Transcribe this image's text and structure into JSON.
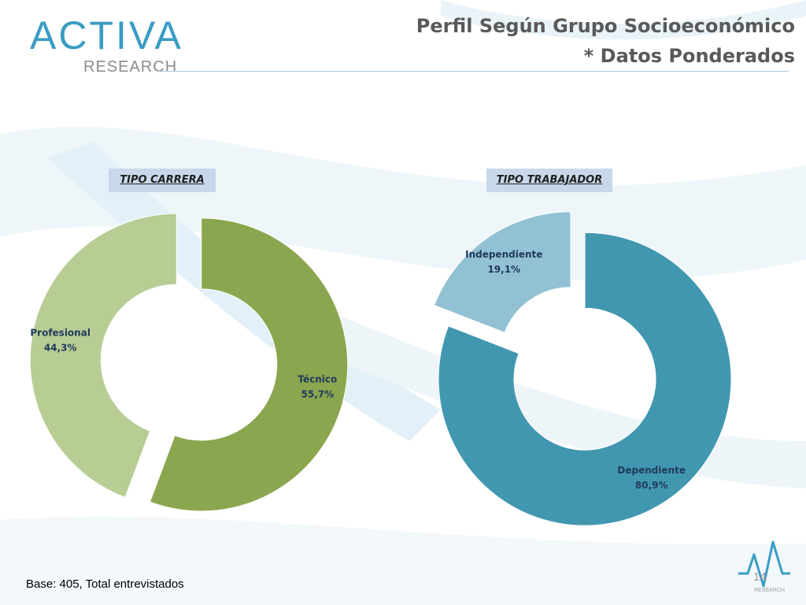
{
  "header": {
    "logo_text": "ACTIVA",
    "logo_subtext": "RESEARCH",
    "title_line1": "Perfil Según Grupo Socioeconómico",
    "title_line2": "* Datos Ponderados"
  },
  "colors": {
    "title": "#595959",
    "brand": "#3a9cc4",
    "label_box": "#c8d8ea"
  },
  "chart_data": [
    {
      "type": "pie",
      "title": "TIPO CARRERA",
      "series": [
        {
          "labels": [
            "Técnico",
            "Profesional"
          ],
          "values": [
            55.7,
            44.3
          ],
          "value_labels": [
            "55,7%",
            "44,3%"
          ],
          "colors": [
            "#8aa64e",
            "#b7cd94"
          ]
        }
      ]
    },
    {
      "type": "pie",
      "title": "TIPO TRABAJADOR",
      "series": [
        {
          "labels": [
            "Dependiente",
            "Independiente"
          ],
          "values": [
            80.9,
            19.1
          ],
          "value_labels": [
            "80,9%",
            "19,1%"
          ],
          "colors": [
            "#4297b0",
            "#92c1d4"
          ]
        }
      ]
    }
  ],
  "footer": {
    "base_note": "Base: 405, Total entrevistados",
    "page_number": "14",
    "page_logo_subtext": "RESEARCH"
  }
}
